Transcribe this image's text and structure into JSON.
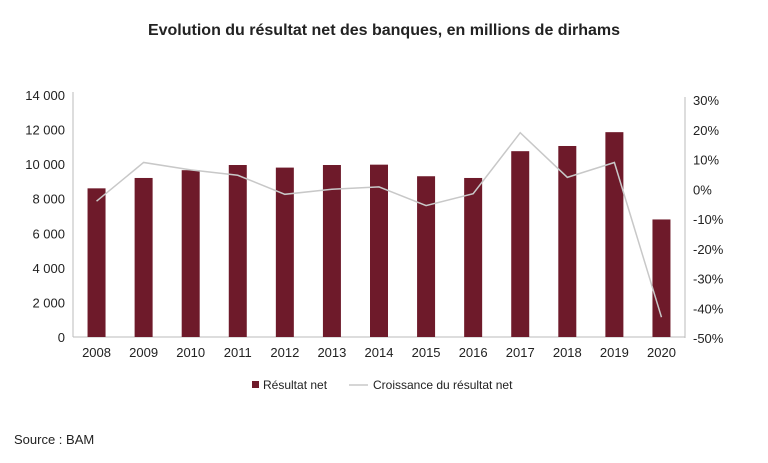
{
  "chart_data": {
    "type": "bar",
    "title": "Evolution du résultat net des banques, en millions de dirhams",
    "categories": [
      "2008",
      "2009",
      "2010",
      "2011",
      "2012",
      "2013",
      "2014",
      "2015",
      "2016",
      "2017",
      "2018",
      "2019",
      "2020"
    ],
    "series": [
      {
        "name": "Résultat net",
        "type": "bar",
        "axis": "left",
        "color": "#6e1a2a",
        "values": [
          8600,
          9200,
          9650,
          9950,
          9800,
          9950,
          9970,
          9300,
          9200,
          10750,
          11050,
          11850,
          6800
        ]
      },
      {
        "name": "Croissance du résultat net",
        "type": "line",
        "axis": "right",
        "color": "#c8c8c8",
        "values": [
          -4,
          9,
          6.5,
          4.7,
          -1.7,
          0,
          0.8,
          -5.5,
          -1.5,
          19,
          4,
          9,
          -43
        ]
      }
    ],
    "left_axis": {
      "ylim": [
        0,
        14000
      ],
      "ticks": [
        0,
        2000,
        4000,
        6000,
        8000,
        10000,
        12000,
        14000
      ],
      "tick_labels": [
        "0",
        "2 000",
        "4 000",
        "6 000",
        "8 000",
        "10 000",
        "12 000",
        "14 000"
      ]
    },
    "right_axis": {
      "ylim": [
        -50,
        30
      ],
      "ticks": [
        -50,
        -40,
        -30,
        -20,
        -10,
        0,
        10,
        20,
        30
      ],
      "tick_labels": [
        "-50%",
        "-40%",
        "-30%",
        "-20%",
        "-10%",
        "0%",
        "10%",
        "20%",
        "30%"
      ]
    },
    "grid": false,
    "legend_position": "bottom"
  },
  "source": "Source : BAM"
}
